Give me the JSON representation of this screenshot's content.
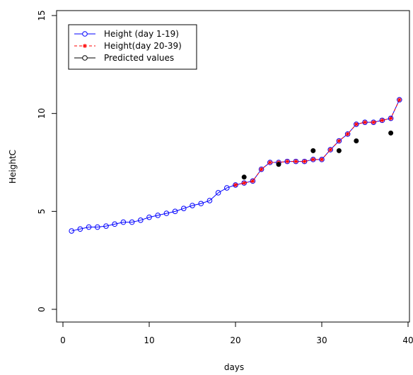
{
  "chart_data": {
    "type": "line",
    "title": "",
    "xlabel": "days",
    "ylabel": "HeightC",
    "xlim": [
      0,
      40
    ],
    "ylim": [
      0,
      15
    ],
    "xticks": [
      "0",
      "10",
      "20",
      "30",
      "40"
    ],
    "yticks": [
      "0",
      "5",
      "10",
      "15"
    ],
    "grid": false,
    "legend_position": "top-left",
    "legend": [
      "Height (day 1-19)",
      "Height(day 20-39)",
      "Predicted values"
    ],
    "series": [
      {
        "name": "Height (day 1-19)",
        "color": "#0000ff",
        "style": "line-open-circle",
        "x": [
          1,
          2,
          3,
          4,
          5,
          6,
          7,
          8,
          9,
          10,
          11,
          12,
          13,
          14,
          15,
          16,
          17,
          18,
          19,
          20,
          21,
          22,
          23,
          24,
          25,
          26,
          27,
          28,
          29,
          30,
          31,
          32,
          33,
          34,
          35,
          36,
          37,
          38,
          39
        ],
        "y": [
          4.0,
          4.1,
          4.2,
          4.2,
          4.25,
          4.35,
          4.45,
          4.45,
          4.55,
          4.7,
          4.8,
          4.9,
          5.0,
          5.15,
          5.3,
          5.4,
          5.55,
          5.95,
          6.2,
          6.35,
          6.45,
          6.55,
          7.15,
          7.5,
          7.5,
          7.55,
          7.55,
          7.55,
          7.65,
          7.65,
          8.15,
          8.6,
          8.95,
          9.45,
          9.55,
          9.55,
          9.65,
          9.75,
          10.7
        ]
      },
      {
        "name": "Height(day 20-39)",
        "color": "#ff0000",
        "style": "dashed-line-star",
        "x": [
          20,
          21,
          22,
          23,
          24,
          25,
          26,
          27,
          28,
          29,
          30,
          31,
          32,
          33,
          34,
          35,
          36,
          37,
          38,
          39
        ],
        "y": [
          6.35,
          6.45,
          6.55,
          7.15,
          7.5,
          7.5,
          7.55,
          7.55,
          7.55,
          7.65,
          7.65,
          8.15,
          8.6,
          8.95,
          9.45,
          9.55,
          9.55,
          9.65,
          9.75,
          10.7
        ]
      },
      {
        "name": "Predicted values",
        "color": "#000000",
        "style": "filled-point",
        "x": [
          21,
          25,
          29,
          32,
          34,
          38
        ],
        "y": [
          6.75,
          7.4,
          8.1,
          8.1,
          8.6,
          9.0
        ]
      }
    ]
  }
}
